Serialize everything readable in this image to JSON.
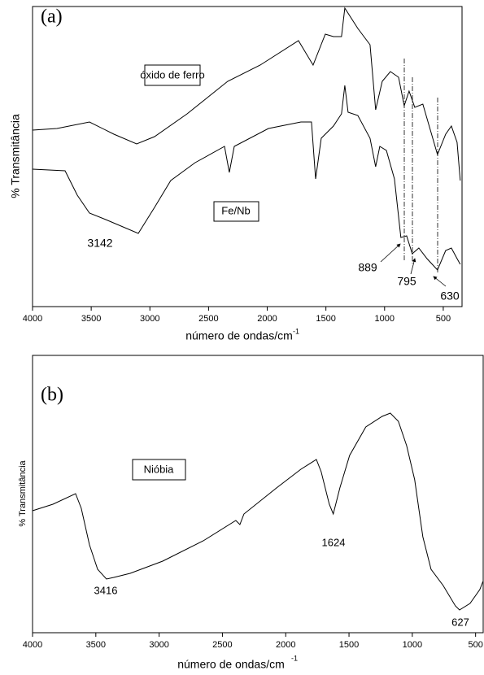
{
  "chart_data": [
    {
      "type": "line",
      "panel_label": "(a)",
      "xlabel": "número de ondas/cm",
      "xlabel_superscript": "-1",
      "ylabel": "% Transmitância",
      "xlim": [
        4000,
        340
      ],
      "xticks": [
        4000,
        3500,
        3000,
        2500,
        2000,
        1500,
        1000,
        500
      ],
      "ylim": [
        0,
        369
      ],
      "annotations": [
        "3142",
        "889",
        "795",
        "630"
      ],
      "series": [
        {
          "name": "óxido de ferro",
          "color": "#000000",
          "x": [
            4000,
            3792,
            3515,
            3307,
            3113,
            2960,
            2683,
            2337,
            2060,
            1734,
            1609,
            1505,
            1436,
            1367,
            1339,
            1228,
            1124,
            1076,
            1020,
            951,
            881,
            833,
            791,
            743,
            674,
            549,
            479,
            431,
            382,
            355
          ],
          "values": [
            217,
            219,
            227,
            212,
            200,
            209,
            237,
            277,
            297,
            327,
            297,
            335,
            332,
            332,
            367,
            342,
            322,
            242,
            277,
            289,
            282,
            247,
            265,
            245,
            249,
            187,
            212,
            222,
            202,
            155
          ]
        },
        {
          "name": "Fe/Nb",
          "color": "#000000",
          "x": [
            4000,
            3723,
            3619,
            3515,
            3376,
            3099,
            2960,
            2822,
            2614,
            2364,
            2323,
            2281,
            1990,
            1713,
            1623,
            1588,
            1540,
            1436,
            1367,
            1339,
            1311,
            1228,
            1124,
            1076,
            1041,
            985,
            916,
            861,
            812,
            764,
            708,
            639,
            549,
            479,
            431,
            382,
            355
          ],
          "values": [
            169,
            167,
            137,
            115,
            107,
            90,
            122,
            155,
            177,
            197,
            165,
            197,
            219,
            227,
            227,
            157,
            207,
            222,
            237,
            272,
            239,
            235,
            207,
            172,
            197,
            192,
            157,
            85,
            87,
            65,
            72,
            59,
            45,
            69,
            72,
            59,
            52
          ]
        }
      ]
    },
    {
      "type": "line",
      "panel_label": "(b)",
      "xlabel": "número de ondas/cm",
      "xlabel_superscript": "-1",
      "ylabel": "% Transmitância",
      "xlim": [
        4000,
        440
      ],
      "xticks": [
        4000,
        3500,
        3000,
        2500,
        2000,
        1500,
        1000,
        500
      ],
      "ylim": [
        0,
        341
      ],
      "annotations": [
        "3416",
        "1624",
        "627"
      ],
      "series": [
        {
          "name": "Nióbia",
          "color": "#000000",
          "x": [
            4000,
            3839,
            3660,
            3615,
            3550,
            3486,
            3416,
            3358,
            3229,
            2972,
            2651,
            2394,
            2362,
            2330,
            2073,
            1880,
            1758,
            1720,
            1656,
            1624,
            1572,
            1495,
            1367,
            1238,
            1174,
            1110,
            1045,
            981,
            917,
            852,
            756,
            660,
            627,
            544,
            467,
            442
          ],
          "values": [
            150,
            158,
            171,
            153,
            108,
            78,
            66,
            68,
            73,
            88,
            113,
            138,
            133,
            146,
            178,
            201,
            213,
            198,
            158,
            146,
            178,
            218,
            253,
            266,
            270,
            260,
            230,
            188,
            118,
            78,
            58,
            33,
            28,
            36,
            53,
            63
          ]
        }
      ]
    }
  ]
}
